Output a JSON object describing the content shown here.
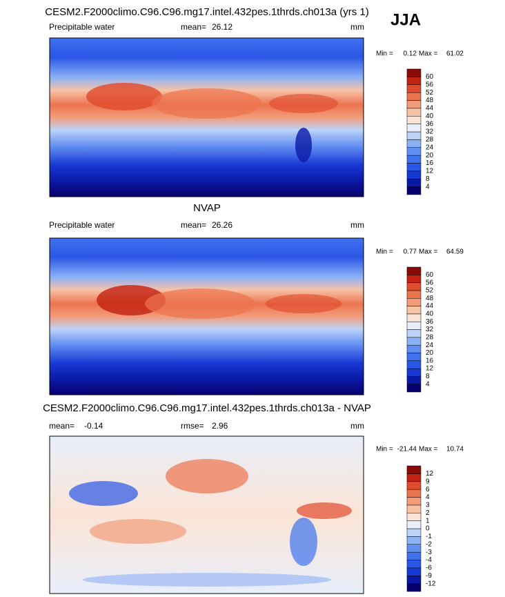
{
  "season": "JJA",
  "panels": [
    {
      "title": "CESM2.F2000climo.C96.C96.mg17.intel.432pes.1thrds.ch013a (yrs 1)",
      "left_label": "Precipitable water",
      "stat_label": "mean=",
      "stat": 26.12,
      "units": "mm",
      "min_label": "Min =",
      "min": 0.12,
      "max_label": "Max =",
      "max": 61.02,
      "levels": [
        4,
        8,
        12,
        16,
        20,
        24,
        28,
        32,
        36,
        40,
        44,
        48,
        52,
        56,
        60
      ]
    },
    {
      "title": "NVAP",
      "left_label": "Precipitable water",
      "stat_label": "mean=",
      "stat": 26.26,
      "units": "mm",
      "min_label": "Min =",
      "min": 0.77,
      "max_label": "Max =",
      "max": 64.59,
      "levels": [
        4,
        8,
        12,
        16,
        20,
        24,
        28,
        32,
        36,
        40,
        44,
        48,
        52,
        56,
        60
      ]
    },
    {
      "title": "CESM2.F2000climo.C96.C96.mg17.intel.432pes.1thrds.ch013a - NVAP",
      "left_label": "mean=",
      "left_value": -0.14,
      "stat_label": "rmse=",
      "stat": 2.96,
      "units": "mm",
      "min_label": "Min =",
      "min": -21.44,
      "max_label": "Max =",
      "max": 10.74,
      "levels": [
        -12,
        -9,
        -6,
        -4,
        -3,
        -2,
        -1,
        0,
        1,
        2,
        3,
        4,
        6,
        9,
        12
      ]
    }
  ],
  "colors": [
    "#08006e",
    "#0b1aa6",
    "#1838d4",
    "#2a56e6",
    "#3f72ee",
    "#6290f2",
    "#8db1f5",
    "#bcd2f8",
    "#e8eefa",
    "#fbe4d6",
    "#f8c2a7",
    "#f29c7a",
    "#ec744f",
    "#e04a2d",
    "#c22212",
    "#8a0a05"
  ]
}
